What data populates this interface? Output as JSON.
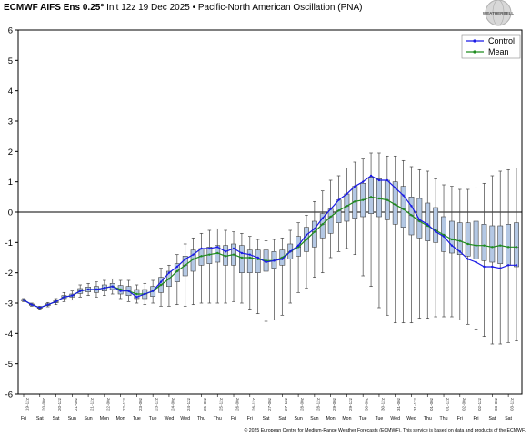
{
  "title_bold": "ECMWF AIFS Ens 0.25°",
  "title_rest": " Init 12z 19 Dec 2025 • Pacific-North American Oscillation (PNA)",
  "footer": "© 2025 European Centre for Medium-Range Weather Forecasts (ECMWF). This service is based on data and products of the ECMWF.",
  "logo": "WEATHERBELL",
  "colors": {
    "control": "#1a1ae6",
    "mean": "#1e8c1e",
    "box_fill": "#b4c8e4",
    "box_stroke": "#444444"
  },
  "chart_data": {
    "type": "box",
    "ylim": [
      -6,
      6
    ],
    "yticks": [
      -6,
      -5,
      -4,
      -3,
      -2,
      -1,
      0,
      1,
      2,
      3,
      4,
      5,
      6
    ],
    "legend": {
      "placement": "top-right",
      "entries": [
        "Control",
        "Mean"
      ]
    },
    "grid": false,
    "zero_line": true,
    "date_labels": [
      "19-12z",
      "20-00z",
      "20-12z",
      "21-00z",
      "21-12z",
      "22-00z",
      "22-12z",
      "23-00z",
      "23-12z",
      "24-00z",
      "24-12z",
      "25-00z",
      "25-12z",
      "26-00z",
      "26-12z",
      "27-00z",
      "27-12z",
      "28-00z",
      "28-12z",
      "29-00z",
      "29-12z",
      "30-00z",
      "30-12z",
      "31-00z",
      "31-12z",
      "01-00z",
      "01-12z",
      "02-00z",
      "02-12z",
      "03-00z",
      "03-12z"
    ],
    "day_labels": [
      "Fri",
      "Sat",
      "Sat",
      "Sun",
      "Sun",
      "Mon",
      "Mon",
      "Tue",
      "Tue",
      "Wed",
      "Wed",
      "Thu",
      "Thu",
      "Fri",
      "Fri",
      "Sat",
      "Sat",
      "Sun",
      "Sun",
      "Mon",
      "Mon",
      "Tue",
      "Tue",
      "Wed",
      "Wed",
      "Thu",
      "Thu",
      "Fri",
      "Fri",
      "Sat",
      "Sat"
    ],
    "series": [
      {
        "name": "Control",
        "values": [
          -2.9,
          -3.05,
          -3.15,
          -3.05,
          -2.95,
          -2.8,
          -2.75,
          -2.6,
          -2.55,
          -2.55,
          -2.5,
          -2.45,
          -2.6,
          -2.6,
          -2.8,
          -2.7,
          -2.6,
          -2.3,
          -2.0,
          -1.8,
          -1.55,
          -1.4,
          -1.2,
          -1.2,
          -1.15,
          -1.3,
          -1.2,
          -1.35,
          -1.4,
          -1.5,
          -1.65,
          -1.6,
          -1.55,
          -1.3,
          -1.1,
          -0.75,
          -0.55,
          -0.2,
          0.1,
          0.4,
          0.6,
          0.85,
          1.0,
          1.2,
          1.05,
          1.05,
          0.8,
          0.55,
          0.2,
          -0.25,
          -0.4,
          -0.65,
          -0.8,
          -1.1,
          -1.3,
          -1.55,
          -1.65,
          -1.8,
          -1.8,
          -1.85,
          -1.75,
          -1.75
        ]
      },
      {
        "name": "Mean",
        "values": [
          -2.9,
          -3.05,
          -3.15,
          -3.05,
          -2.95,
          -2.8,
          -2.75,
          -2.6,
          -2.55,
          -2.55,
          -2.5,
          -2.45,
          -2.55,
          -2.6,
          -2.7,
          -2.7,
          -2.6,
          -2.4,
          -2.2,
          -1.95,
          -1.75,
          -1.55,
          -1.45,
          -1.4,
          -1.35,
          -1.45,
          -1.4,
          -1.5,
          -1.5,
          -1.55,
          -1.6,
          -1.6,
          -1.5,
          -1.3,
          -1.15,
          -0.9,
          -0.65,
          -0.4,
          -0.15,
          0.05,
          0.2,
          0.35,
          0.4,
          0.5,
          0.45,
          0.4,
          0.25,
          0.1,
          -0.1,
          -0.3,
          -0.45,
          -0.6,
          -0.75,
          -0.9,
          -0.95,
          -1.05,
          -1.1,
          -1.1,
          -1.15,
          -1.1,
          -1.15,
          -1.15
        ]
      }
    ],
    "boxes": [
      [
        -2.95,
        -2.92,
        -2.9,
        -2.88,
        -2.85
      ],
      [
        -3.1,
        -3.07,
        -3.05,
        -3.03,
        -3.0
      ],
      [
        -3.2,
        -3.17,
        -3.15,
        -3.13,
        -3.1
      ],
      [
        -3.12,
        -3.08,
        -3.05,
        -3.02,
        -2.98
      ],
      [
        -3.05,
        -2.99,
        -2.95,
        -2.91,
        -2.85
      ],
      [
        -2.95,
        -2.85,
        -2.8,
        -2.75,
        -2.65
      ],
      [
        -2.9,
        -2.8,
        -2.75,
        -2.7,
        -2.6
      ],
      [
        -2.8,
        -2.68,
        -2.6,
        -2.52,
        -2.4
      ],
      [
        -2.75,
        -2.63,
        -2.55,
        -2.47,
        -2.35
      ],
      [
        -2.8,
        -2.65,
        -2.55,
        -2.45,
        -2.3
      ],
      [
        -2.75,
        -2.6,
        -2.5,
        -2.4,
        -2.25
      ],
      [
        -2.7,
        -2.55,
        -2.45,
        -2.35,
        -2.2
      ],
      [
        -2.85,
        -2.7,
        -2.55,
        -2.42,
        -2.25
      ],
      [
        -2.95,
        -2.75,
        -2.6,
        -2.45,
        -2.25
      ],
      [
        -3.0,
        -2.85,
        -2.7,
        -2.55,
        -2.4
      ],
      [
        -3.05,
        -2.85,
        -2.7,
        -2.55,
        -2.35
      ],
      [
        -3.0,
        -2.78,
        -2.6,
        -2.45,
        -2.25
      ],
      [
        -3.1,
        -2.65,
        -2.4,
        -2.15,
        -1.85
      ],
      [
        -3.1,
        -2.45,
        -2.2,
        -1.95,
        -1.75
      ],
      [
        -3.05,
        -2.3,
        -1.95,
        -1.7,
        -1.4
      ],
      [
        -3.1,
        -2.1,
        -1.75,
        -1.45,
        -1.05
      ],
      [
        -3.05,
        -1.95,
        -1.55,
        -1.25,
        -0.85
      ],
      [
        -3.0,
        -1.75,
        -1.45,
        -1.2,
        -0.7
      ],
      [
        -3.0,
        -1.7,
        -1.4,
        -1.15,
        -0.6
      ],
      [
        -3.0,
        -1.65,
        -1.35,
        -1.1,
        -0.55
      ],
      [
        -3.0,
        -1.75,
        -1.45,
        -1.1,
        -0.6
      ],
      [
        -2.95,
        -1.75,
        -1.4,
        -1.05,
        -0.65
      ],
      [
        -3.0,
        -2.0,
        -1.5,
        -1.1,
        -0.7
      ],
      [
        -3.2,
        -2.0,
        -1.5,
        -1.25,
        -0.8
      ],
      [
        -3.35,
        -2.0,
        -1.55,
        -1.25,
        -0.9
      ],
      [
        -3.6,
        -1.95,
        -1.6,
        -1.25,
        -0.95
      ],
      [
        -3.55,
        -1.85,
        -1.6,
        -1.3,
        -0.9
      ],
      [
        -3.4,
        -1.75,
        -1.5,
        -1.25,
        -0.85
      ],
      [
        -3.0,
        -1.55,
        -1.3,
        -1.05,
        -0.6
      ],
      [
        -2.65,
        -1.45,
        -1.15,
        -0.8,
        -0.35
      ],
      [
        -2.5,
        -1.3,
        -0.9,
        -0.5,
        -0.1
      ],
      [
        -2.15,
        -1.15,
        -0.65,
        -0.3,
        0.35
      ],
      [
        -2.0,
        -0.85,
        -0.4,
        -0.05,
        0.7
      ],
      [
        -1.5,
        -0.7,
        -0.15,
        0.1,
        1.05
      ],
      [
        -1.3,
        -0.35,
        0.05,
        0.4,
        1.2
      ],
      [
        -1.2,
        -0.3,
        0.2,
        0.6,
        1.45
      ],
      [
        -1.4,
        -0.2,
        0.35,
        0.85,
        1.65
      ],
      [
        -2.1,
        -0.15,
        0.4,
        0.95,
        1.75
      ],
      [
        -2.45,
        -0.05,
        0.5,
        1.15,
        1.95
      ],
      [
        -3.15,
        -0.15,
        0.45,
        1.1,
        1.95
      ],
      [
        -3.4,
        -0.25,
        0.4,
        1.05,
        1.85
      ],
      [
        -3.65,
        -0.4,
        0.25,
        1.0,
        1.85
      ],
      [
        -3.65,
        -0.5,
        0.1,
        0.85,
        1.7
      ],
      [
        -3.65,
        -0.75,
        -0.1,
        0.5,
        1.5
      ],
      [
        -3.5,
        -0.85,
        -0.3,
        0.45,
        1.4
      ],
      [
        -3.5,
        -0.95,
        -0.45,
        0.3,
        1.35
      ],
      [
        -3.45,
        -1.0,
        -0.6,
        0.15,
        1.1
      ],
      [
        -3.45,
        -1.3,
        -0.75,
        -0.15,
        0.9
      ],
      [
        -3.45,
        -1.35,
        -0.9,
        -0.3,
        0.85
      ],
      [
        -3.55,
        -1.4,
        -0.95,
        -0.35,
        0.75
      ],
      [
        -3.7,
        -1.45,
        -1.05,
        -0.35,
        0.75
      ],
      [
        -3.85,
        -1.55,
        -1.1,
        -0.3,
        0.8
      ],
      [
        -4.1,
        -1.6,
        -1.1,
        -0.4,
        0.95
      ],
      [
        -4.35,
        -1.65,
        -1.15,
        -0.45,
        1.2
      ],
      [
        -4.35,
        -1.7,
        -1.1,
        -0.45,
        1.35
      ],
      [
        -4.3,
        -1.75,
        -1.15,
        -0.4,
        1.4
      ],
      [
        -4.25,
        -1.8,
        -1.15,
        -0.35,
        1.45
      ]
    ]
  }
}
